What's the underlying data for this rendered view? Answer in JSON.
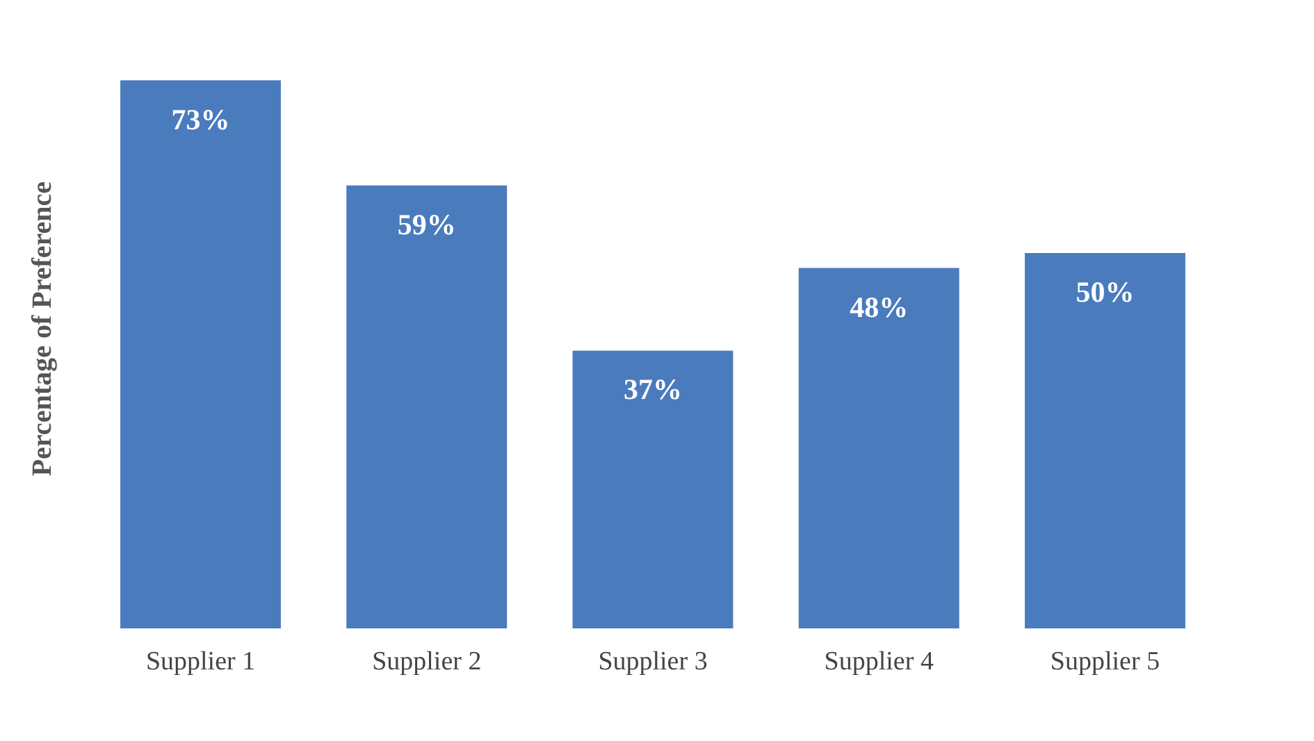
{
  "chart_data": {
    "type": "bar",
    "ylabel": "Percentage of Preference",
    "categories": [
      "Supplier 1",
      "Supplier 2",
      "Supplier 3",
      "Supplier 4",
      "Supplier 5"
    ],
    "values": [
      73,
      59,
      37,
      48,
      50
    ],
    "value_labels": [
      "73%",
      "59%",
      "37%",
      "48%",
      "50%"
    ],
    "color": "#4a7bbd",
    "grid": false
  }
}
